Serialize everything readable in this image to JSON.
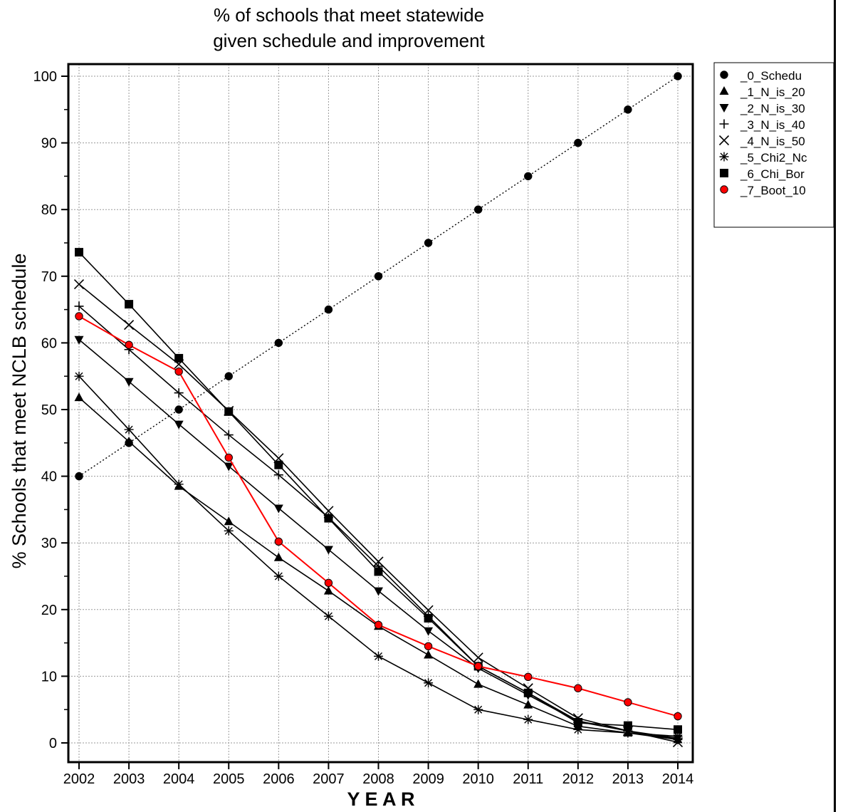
{
  "chart_data": {
    "type": "line",
    "title_lines": [
      "% of schools that meet statewide",
      "given schedule and improvement"
    ],
    "xlabel": "Y E A R",
    "ylabel": "% Schools that meet NCLB schedule",
    "x": [
      2002,
      2003,
      2004,
      2005,
      2006,
      2007,
      2008,
      2009,
      2010,
      2011,
      2012,
      2013,
      2014
    ],
    "x_tick_labels": [
      "2002",
      "2003",
      "2004",
      "2005",
      "2006",
      "2007",
      "2008",
      "2009",
      "2010",
      "2011",
      "2012",
      "2013",
      "2014"
    ],
    "y_ticks": [
      0,
      10,
      20,
      30,
      40,
      50,
      60,
      70,
      80,
      90,
      100
    ],
    "y_tick_labels": [
      "0",
      "10",
      "20",
      "30",
      "40",
      "50",
      "60",
      "70",
      "80",
      "90",
      "100"
    ],
    "xlim": [
      2002,
      2014
    ],
    "ylim": [
      -1,
      101.5
    ],
    "grid": true,
    "legend_position": "top-right",
    "series": [
      {
        "name": "_0_Schedu",
        "marker": "circle",
        "color": "#000000",
        "marker_fill": "#000000",
        "line_style": "dotted",
        "values": [
          40,
          45,
          50,
          55,
          60,
          65,
          70,
          75,
          80,
          85,
          90,
          95,
          100
        ]
      },
      {
        "name": "_1_N_is_20",
        "marker": "triangle-up",
        "color": "#000000",
        "marker_fill": "#000000",
        "line_style": "solid",
        "values": [
          51.8,
          45.2,
          38.5,
          33.2,
          27.8,
          22.8,
          17.5,
          13.2,
          8.8,
          5.7,
          2.5,
          1.5,
          0.5
        ]
      },
      {
        "name": "_2_N_is_30",
        "marker": "triangle-down",
        "color": "#000000",
        "marker_fill": "#000000",
        "line_style": "solid",
        "values": [
          60.5,
          54.2,
          47.8,
          41.5,
          35.2,
          29.0,
          22.8,
          16.8,
          11.2,
          7.2,
          3.2,
          1.8,
          0.7
        ]
      },
      {
        "name": "_3_N_is_40",
        "marker": "plus",
        "color": "#000000",
        "marker_fill": "none",
        "line_style": "solid",
        "values": [
          65.5,
          59.0,
          52.5,
          46.2,
          40.2,
          33.8,
          26.5,
          19.0,
          11.5,
          7.5,
          3.3,
          1.8,
          0.5
        ]
      },
      {
        "name": "_4_N_is_50",
        "marker": "x",
        "color": "#000000",
        "marker_fill": "none",
        "line_style": "solid",
        "values": [
          68.8,
          62.7,
          56.8,
          49.8,
          42.7,
          34.8,
          27.2,
          19.9,
          12.8,
          8.2,
          3.7,
          1.8,
          0.1
        ]
      },
      {
        "name": "_5_Chi2_Nc",
        "marker": "asterisk",
        "color": "#000000",
        "marker_fill": "none",
        "line_style": "solid",
        "values": [
          55.0,
          47.0,
          38.8,
          31.8,
          25.0,
          19.0,
          13.0,
          9.0,
          5.0,
          3.5,
          2.0,
          1.5,
          1.0
        ]
      },
      {
        "name": "_6_Chi_Bor",
        "marker": "square",
        "color": "#000000",
        "marker_fill": "#000000",
        "line_style": "solid",
        "values": [
          73.6,
          65.8,
          57.7,
          49.7,
          41.7,
          33.7,
          25.7,
          18.7,
          11.5,
          7.5,
          3.0,
          2.6,
          2.0
        ]
      },
      {
        "name": "_7_Boot_10",
        "marker": "circle",
        "color": "#ff0000",
        "marker_fill": "#ff0000",
        "line_style": "solid",
        "values": [
          64.0,
          59.7,
          55.7,
          42.8,
          30.2,
          24.0,
          17.7,
          14.5,
          11.5,
          9.9,
          8.2,
          6.1,
          4.0
        ]
      }
    ]
  }
}
